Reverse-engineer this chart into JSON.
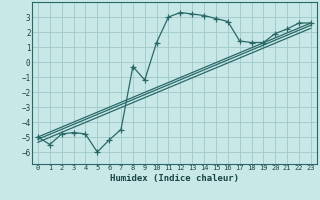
{
  "xlabel": "Humidex (Indice chaleur)",
  "background_color": "#c8e8e8",
  "grid_color": "#a0c8c8",
  "line_color": "#2a6868",
  "xlim": [
    -0.5,
    23.5
  ],
  "ylim": [
    -6.8,
    4.0
  ],
  "yticks": [
    3,
    2,
    1,
    0,
    -1,
    -2,
    -3,
    -4,
    -5,
    -6
  ],
  "xticks": [
    0,
    1,
    2,
    3,
    4,
    5,
    6,
    7,
    8,
    9,
    10,
    11,
    12,
    13,
    14,
    15,
    16,
    17,
    18,
    19,
    20,
    21,
    22,
    23
  ],
  "main_line_x": [
    0,
    1,
    2,
    3,
    4,
    5,
    6,
    7,
    8,
    9,
    10,
    11,
    12,
    13,
    14,
    15,
    16,
    17,
    18,
    19,
    20,
    21,
    22,
    23
  ],
  "main_line_y": [
    -5.0,
    -5.5,
    -4.8,
    -4.7,
    -4.8,
    -6.0,
    -5.2,
    -4.5,
    -0.3,
    -1.2,
    1.3,
    3.0,
    3.3,
    3.2,
    3.1,
    2.9,
    2.7,
    1.4,
    1.3,
    1.3,
    1.9,
    2.2,
    2.6,
    2.6
  ],
  "linear_lines": [
    {
      "x": [
        0,
        23
      ],
      "y": [
        -5.0,
        2.6
      ]
    },
    {
      "x": [
        0,
        23
      ],
      "y": [
        -5.15,
        2.45
      ]
    },
    {
      "x": [
        0,
        23
      ],
      "y": [
        -5.35,
        2.25
      ]
    }
  ]
}
